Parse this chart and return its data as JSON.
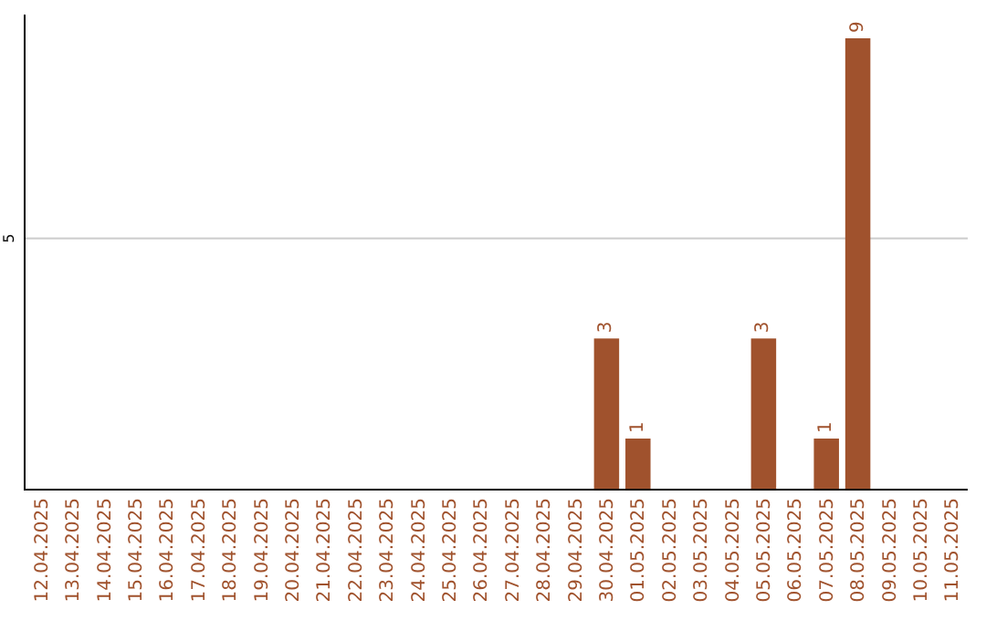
{
  "chart_data": {
    "type": "bar",
    "categories": [
      "12.04.2025",
      "13.04.2025",
      "14.04.2025",
      "15.04.2025",
      "16.04.2025",
      "17.04.2025",
      "18.04.2025",
      "19.04.2025",
      "20.04.2025",
      "21.04.2025",
      "22.04.2025",
      "23.04.2025",
      "24.04.2025",
      "25.04.2025",
      "26.04.2025",
      "27.04.2025",
      "28.04.2025",
      "29.04.2025",
      "30.04.2025",
      "01.05.2025",
      "02.05.2025",
      "03.05.2025",
      "04.05.2025",
      "05.05.2025",
      "06.05.2025",
      "07.05.2025",
      "08.05.2025",
      "09.05.2025",
      "10.05.2025",
      "11.05.2025"
    ],
    "values": [
      null,
      null,
      null,
      null,
      null,
      null,
      null,
      null,
      null,
      null,
      null,
      null,
      null,
      null,
      null,
      null,
      null,
      null,
      3,
      1,
      null,
      null,
      null,
      3,
      null,
      1,
      9,
      null,
      null,
      null
    ],
    "data_labels": true,
    "color": "#a0522d",
    "ref_lines": [
      {
        "axis": "y",
        "value": 5,
        "label": "5",
        "color": "#cccccc"
      }
    ]
  }
}
